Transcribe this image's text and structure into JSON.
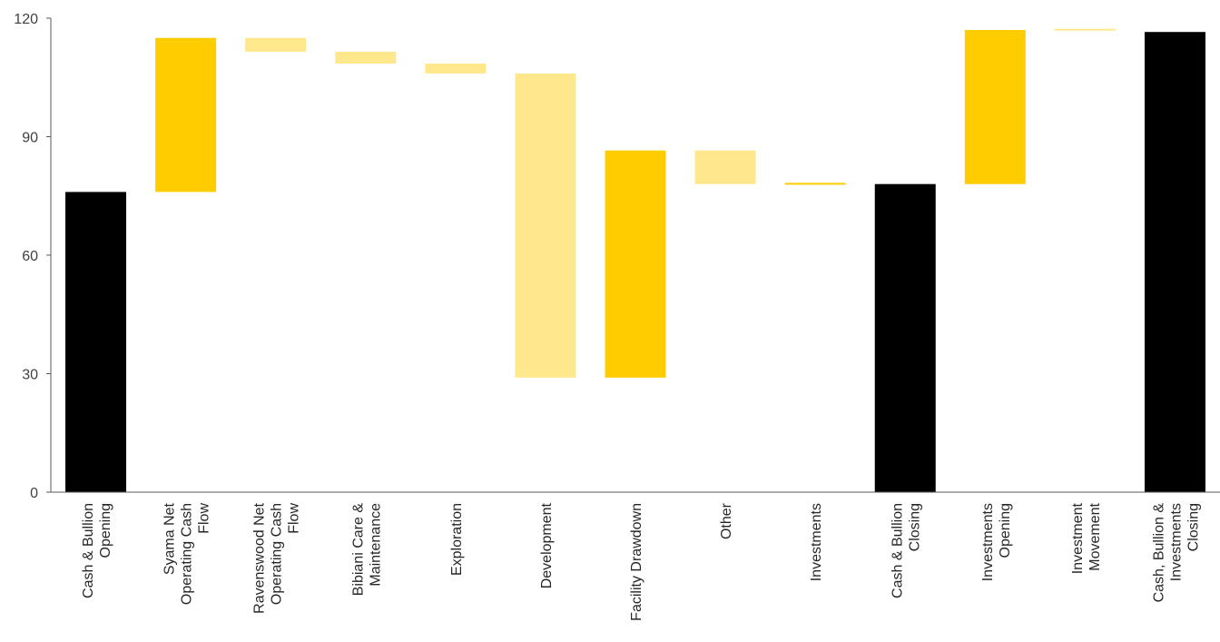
{
  "chart_data": {
    "type": "bar",
    "subtype": "waterfall",
    "title": "",
    "xlabel": "",
    "ylabel": "",
    "ylim": [
      0,
      120
    ],
    "yticks": [
      0,
      30,
      60,
      90,
      120
    ],
    "grid": false,
    "legend": "none",
    "colors": {
      "total": "#000000",
      "increase": "#FFCC00",
      "decrease": "#FFE88C"
    },
    "bars": [
      {
        "label": [
          "Cash & Bullion",
          "Opening"
        ],
        "kind": "total",
        "start": 0,
        "end": 76
      },
      {
        "label": [
          "Syama Net",
          "Operating Cash",
          "Flow"
        ],
        "kind": "increase",
        "start": 76,
        "end": 115
      },
      {
        "label": [
          "Ravenswood Net",
          "Operating Cash",
          "Flow"
        ],
        "kind": "decrease",
        "start": 115,
        "end": 111.5
      },
      {
        "label": [
          "Bibiani Care &",
          "Maintenance"
        ],
        "kind": "decrease",
        "start": 111.5,
        "end": 108.5
      },
      {
        "label": [
          "Exploration"
        ],
        "kind": "decrease",
        "start": 108.5,
        "end": 106
      },
      {
        "label": [
          "Development"
        ],
        "kind": "decrease",
        "start": 106,
        "end": 29
      },
      {
        "label": [
          "Facility Drawdown"
        ],
        "kind": "increase",
        "start": 29,
        "end": 86.5
      },
      {
        "label": [
          "Other"
        ],
        "kind": "decrease",
        "start": 86.5,
        "end": 78
      },
      {
        "label": [
          "Investments"
        ],
        "kind": "increase",
        "start": 78,
        "end": 78.3
      },
      {
        "label": [
          "Cash & Bullion",
          "Closing"
        ],
        "kind": "total",
        "start": 0,
        "end": 78
      },
      {
        "label": [
          "Investments",
          "Opening"
        ],
        "kind": "increase",
        "start": 78,
        "end": 117
      },
      {
        "label": [
          "Investment",
          "Movement"
        ],
        "kind": "decrease",
        "start": 117.3,
        "end": 117
      },
      {
        "label": [
          "Cash, Bullion &",
          "Investments",
          "Closing"
        ],
        "kind": "total",
        "start": 0,
        "end": 116.5
      }
    ]
  }
}
